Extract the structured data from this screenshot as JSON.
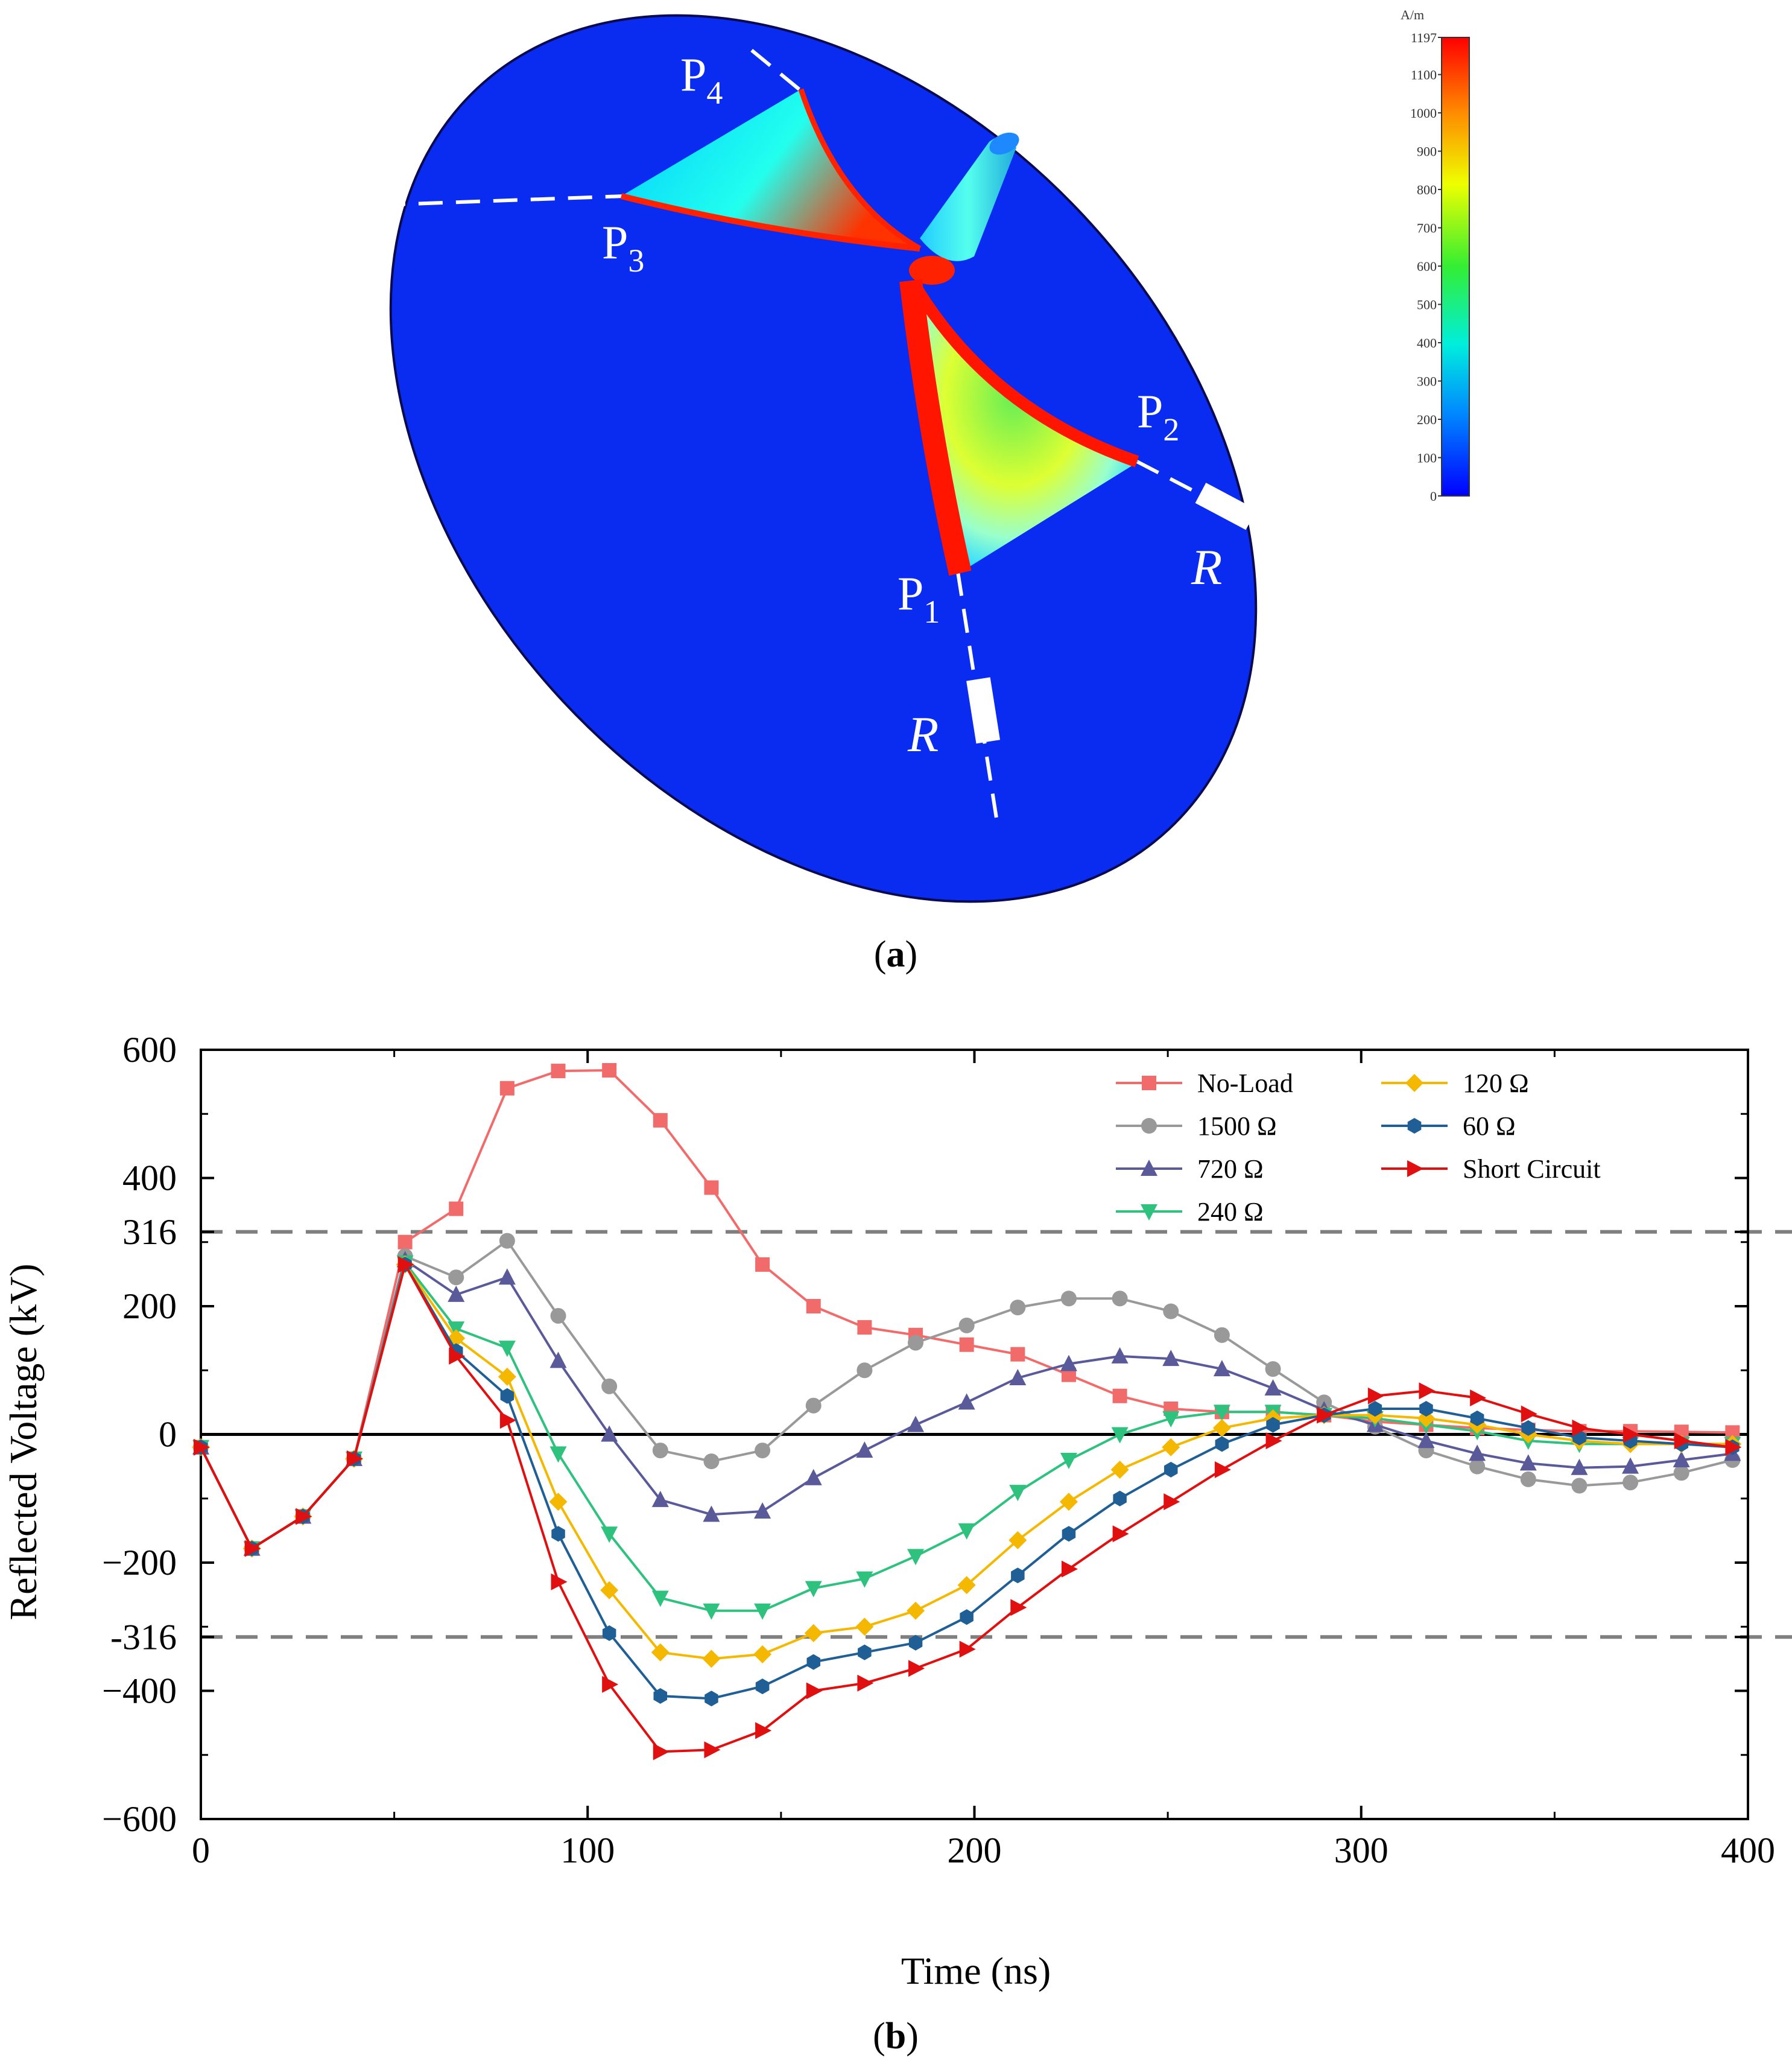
{
  "panel_a": {
    "caption_open": "(",
    "caption_letter": "a",
    "caption_close": ")",
    "colorbar": {
      "unit": "A/m",
      "ticks": [
        "1197",
        "1100",
        "1000",
        "900",
        "800",
        "700",
        "600",
        "500",
        "400",
        "300",
        "200",
        "100",
        "0"
      ],
      "colors": [
        "#0000ff",
        "#00aaff",
        "#00ffdd",
        "#33ff33",
        "#ffff00",
        "#ff8800",
        "#ff0000"
      ]
    },
    "points": [
      {
        "letter": "P",
        "sub": "1"
      },
      {
        "letter": "P",
        "sub": "2"
      },
      {
        "letter": "P",
        "sub": "3"
      },
      {
        "letter": "P",
        "sub": "4"
      }
    ],
    "resistor_labels": [
      "R",
      "R"
    ],
    "colors": {
      "plate": "#0a2bf0",
      "outline": "#0a0a50"
    }
  },
  "panel_b": {
    "caption_open": "(",
    "caption_letter": "b",
    "caption_close": ")"
  },
  "chart_data": {
    "type": "line",
    "title": "",
    "xlabel": "Time (ns)",
    "ylabel": "Reflected Voltage (kV)",
    "xlim": [
      0,
      400
    ],
    "ylim": [
      -600,
      600
    ],
    "x_ticks": [
      0,
      100,
      200,
      300,
      400
    ],
    "y_ticks": [
      -600,
      -400,
      -316,
      -200,
      0,
      200,
      316,
      400,
      600
    ],
    "x_tick_labels": [
      "0",
      "100",
      "200",
      "300",
      "400"
    ],
    "y_tick_labels": [
      "−600",
      "−400",
      "-316",
      "−200",
      "0",
      "200",
      "316",
      "400",
      "600"
    ],
    "reference_lines": [
      316,
      -316
    ],
    "zero_line": 0,
    "legend_position": "top-right",
    "series": [
      {
        "name": "No-Load",
        "color": "#f26b6b",
        "marker": "square",
        "x": [
          0,
          13.2,
          26.4,
          39.6,
          52.8,
          66,
          79.2,
          92.4,
          105.6,
          118.8,
          132,
          145.2,
          158.4,
          171.6,
          184.8,
          198,
          211.2,
          224.4,
          237.6,
          250.8,
          264,
          277.2,
          290.4,
          303.6,
          316.8,
          330,
          343.2,
          356.4,
          369.6,
          382.8,
          396
        ],
        "y": [
          -20,
          -178,
          -128,
          -38,
          300,
          352,
          540,
          567,
          568,
          490,
          385,
          265,
          200,
          167,
          155,
          140,
          125,
          93,
          60,
          40,
          35,
          35,
          30,
          20,
          15,
          10,
          7,
          5,
          5,
          4,
          3
        ]
      },
      {
        "name": "1500 Ω",
        "color": "#999999",
        "marker": "circle",
        "x": [
          0,
          13.2,
          26.4,
          39.6,
          52.8,
          66,
          79.2,
          92.4,
          105.6,
          118.8,
          132,
          145.2,
          158.4,
          171.6,
          184.8,
          198,
          211.2,
          224.4,
          237.6,
          250.8,
          264,
          277.2,
          290.4,
          303.6,
          316.8,
          330,
          343.2,
          356.4,
          369.6,
          382.8,
          396
        ],
        "y": [
          -20,
          -178,
          -128,
          -38,
          278,
          245,
          302,
          185,
          75,
          -25,
          -42,
          -25,
          45,
          100,
          143,
          170,
          198,
          212,
          212,
          192,
          155,
          102,
          50,
          12,
          -25,
          -50,
          -70,
          -80,
          -75,
          -60,
          -40
        ]
      },
      {
        "name": "720 Ω",
        "color": "#5a5a9a",
        "marker": "triangle-up",
        "x": [
          0,
          13.2,
          26.4,
          39.6,
          52.8,
          66,
          79.2,
          92.4,
          105.6,
          118.8,
          132,
          145.2,
          158.4,
          171.6,
          184.8,
          198,
          211.2,
          224.4,
          237.6,
          250.8,
          264,
          277.2,
          290.4,
          303.6,
          316.8,
          330,
          343.2,
          356.4,
          369.6,
          382.8,
          396
        ],
        "y": [
          -20,
          -178,
          -128,
          -38,
          272,
          218,
          245,
          115,
          0,
          -102,
          -125,
          -120,
          -68,
          -25,
          15,
          50,
          88,
          110,
          122,
          118,
          102,
          72,
          38,
          15,
          -10,
          -30,
          -45,
          -52,
          -50,
          -40,
          -30
        ]
      },
      {
        "name": "240 Ω",
        "color": "#2ec27e",
        "marker": "triangle-down",
        "x": [
          0,
          13.2,
          26.4,
          39.6,
          52.8,
          66,
          79.2,
          92.4,
          105.6,
          118.8,
          132,
          145.2,
          158.4,
          171.6,
          184.8,
          198,
          211.2,
          224.4,
          237.6,
          250.8,
          264,
          277.2,
          290.4,
          303.6,
          316.8,
          330,
          343.2,
          356.4,
          369.6,
          382.8,
          396
        ],
        "y": [
          -20,
          -178,
          -128,
          -38,
          268,
          165,
          135,
          -30,
          -155,
          -255,
          -275,
          -275,
          -240,
          -225,
          -190,
          -150,
          -90,
          -40,
          0,
          25,
          35,
          35,
          30,
          25,
          15,
          5,
          -10,
          -15,
          -15,
          -15,
          -15
        ]
      },
      {
        "name": "120 Ω",
        "color": "#f5b800",
        "marker": "diamond",
        "x": [
          0,
          13.2,
          26.4,
          39.6,
          52.8,
          66,
          79.2,
          92.4,
          105.6,
          118.8,
          132,
          145.2,
          158.4,
          171.6,
          184.8,
          198,
          211.2,
          224.4,
          237.6,
          250.8,
          264,
          277.2,
          290.4,
          303.6,
          316.8,
          330,
          343.2,
          356.4,
          369.6,
          382.8,
          396
        ],
        "y": [
          -20,
          -178,
          -128,
          -38,
          265,
          150,
          90,
          -105,
          -243,
          -340,
          -350,
          -343,
          -310,
          -300,
          -275,
          -235,
          -165,
          -105,
          -55,
          -20,
          10,
          25,
          30,
          30,
          25,
          15,
          0,
          -10,
          -15,
          -15,
          -15
        ]
      },
      {
        "name": "60 Ω",
        "color": "#1f5f95",
        "marker": "hexagon",
        "x": [
          0,
          13.2,
          26.4,
          39.6,
          52.8,
          66,
          79.2,
          92.4,
          105.6,
          118.8,
          132,
          145.2,
          158.4,
          171.6,
          184.8,
          198,
          211.2,
          224.4,
          237.6,
          250.8,
          264,
          277.2,
          290.4,
          303.6,
          316.8,
          330,
          343.2,
          356.4,
          369.6,
          382.8,
          396
        ],
        "y": [
          -20,
          -178,
          -128,
          -38,
          265,
          130,
          60,
          -155,
          -310,
          -408,
          -412,
          -393,
          -355,
          -340,
          -325,
          -285,
          -220,
          -155,
          -100,
          -55,
          -15,
          15,
          30,
          40,
          40,
          25,
          10,
          -5,
          -10,
          -15,
          -20
        ]
      },
      {
        "name": "Short Circuit",
        "color": "#e01010",
        "marker": "triangle-right",
        "x": [
          0,
          13.2,
          26.4,
          39.6,
          52.8,
          66,
          79.2,
          92.4,
          105.6,
          118.8,
          132,
          145.2,
          158.4,
          171.6,
          184.8,
          198,
          211.2,
          224.4,
          237.6,
          250.8,
          264,
          277.2,
          290.4,
          303.6,
          316.8,
          330,
          343.2,
          356.4,
          369.6,
          382.8,
          396
        ],
        "y": [
          -20,
          -178,
          -128,
          -38,
          265,
          122,
          22,
          -230,
          -390,
          -495,
          -492,
          -462,
          -400,
          -388,
          -365,
          -335,
          -270,
          -210,
          -155,
          -105,
          -55,
          -10,
          30,
          60,
          68,
          57,
          32,
          10,
          0,
          -10,
          -20
        ]
      }
    ]
  }
}
